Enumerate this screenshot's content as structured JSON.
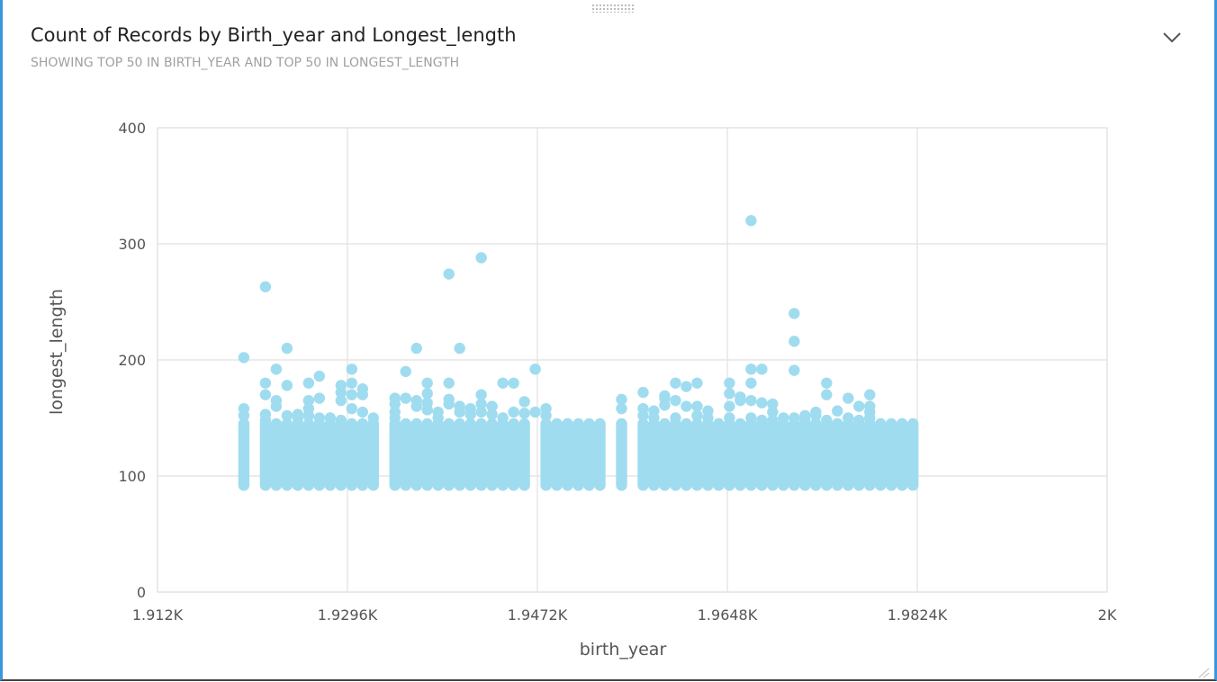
{
  "header": {
    "title": "Count of Records by Birth_year and Longest_length",
    "subtitle": "SHOWING TOP 50 IN BIRTH_YEAR AND TOP 50 IN LONGEST_LENGTH"
  },
  "icons": {
    "collapse": "chevron-down-icon",
    "resize": "resize-grip-icon",
    "drag": "drag-handle-icon"
  },
  "colors": {
    "point": "#a0dcef",
    "grid": "#e1e1e1",
    "accent": "#3a96dd"
  },
  "chart_data": {
    "type": "scatter",
    "xlabel": "birth_year",
    "ylabel": "longest_length",
    "xlim": [
      1912,
      2000
    ],
    "ylim": [
      0,
      400
    ],
    "grid": true,
    "x_ticks": [
      1912,
      1929.6,
      1947.2,
      1964.8,
      1982.4,
      2000
    ],
    "x_tick_labels": [
      "1.912K",
      "1.9296K",
      "1.9472K",
      "1.9648K",
      "1.9824K",
      "2K"
    ],
    "y_ticks": [
      0,
      100,
      200,
      300,
      400
    ],
    "y_tick_labels": [
      "0",
      "100",
      "200",
      "300",
      "400"
    ],
    "bands": {
      "note_min": 92,
      "note_max": 145,
      "years": [
        1920,
        1922,
        1923,
        1924,
        1925,
        1926,
        1927,
        1928,
        1929,
        1930,
        1931,
        1932,
        1934,
        1935,
        1936,
        1937,
        1938,
        1939,
        1940,
        1941,
        1942,
        1943,
        1944,
        1945,
        1946,
        1948,
        1949,
        1950,
        1951,
        1952,
        1953,
        1955,
        1957,
        1958,
        1959,
        1960,
        1961,
        1962,
        1963,
        1964,
        1965,
        1966,
        1967,
        1968,
        1969,
        1970,
        1971,
        1972,
        1973,
        1974,
        1975,
        1976,
        1977,
        1978,
        1979,
        1980,
        1981,
        1982
      ]
    },
    "points": [
      [
        1920,
        202
      ],
      [
        1920,
        158
      ],
      [
        1920,
        152
      ],
      [
        1922,
        263
      ],
      [
        1922,
        180
      ],
      [
        1922,
        170
      ],
      [
        1922,
        153
      ],
      [
        1922,
        148
      ],
      [
        1923,
        192
      ],
      [
        1923,
        165
      ],
      [
        1923,
        160
      ],
      [
        1924,
        210
      ],
      [
        1924,
        178
      ],
      [
        1924,
        152
      ],
      [
        1925,
        153
      ],
      [
        1925,
        150
      ],
      [
        1926,
        180
      ],
      [
        1926,
        165
      ],
      [
        1926,
        158
      ],
      [
        1926,
        152
      ],
      [
        1927,
        186
      ],
      [
        1927,
        167
      ],
      [
        1927,
        150
      ],
      [
        1928,
        150
      ],
      [
        1929,
        178
      ],
      [
        1929,
        172
      ],
      [
        1929,
        165
      ],
      [
        1929,
        148
      ],
      [
        1930,
        192
      ],
      [
        1930,
        180
      ],
      [
        1930,
        170
      ],
      [
        1930,
        158
      ],
      [
        1931,
        175
      ],
      [
        1931,
        170
      ],
      [
        1931,
        155
      ],
      [
        1932,
        150
      ],
      [
        1934,
        167
      ],
      [
        1934,
        162
      ],
      [
        1934,
        155
      ],
      [
        1934,
        150
      ],
      [
        1935,
        190
      ],
      [
        1935,
        167
      ],
      [
        1936,
        210
      ],
      [
        1936,
        165
      ],
      [
        1936,
        160
      ],
      [
        1937,
        180
      ],
      [
        1937,
        171
      ],
      [
        1937,
        163
      ],
      [
        1937,
        157
      ],
      [
        1938,
        155
      ],
      [
        1938,
        150
      ],
      [
        1939,
        274
      ],
      [
        1939,
        180
      ],
      [
        1939,
        166
      ],
      [
        1939,
        162
      ],
      [
        1940,
        210
      ],
      [
        1940,
        160
      ],
      [
        1940,
        155
      ],
      [
        1941,
        158
      ],
      [
        1941,
        153
      ],
      [
        1942,
        288
      ],
      [
        1942,
        170
      ],
      [
        1942,
        162
      ],
      [
        1942,
        155
      ],
      [
        1943,
        160
      ],
      [
        1943,
        153
      ],
      [
        1944,
        180
      ],
      [
        1944,
        150
      ],
      [
        1945,
        180
      ],
      [
        1945,
        155
      ],
      [
        1946,
        164
      ],
      [
        1946,
        154
      ],
      [
        1947,
        192
      ],
      [
        1947,
        155
      ],
      [
        1948,
        158
      ],
      [
        1948,
        152
      ],
      [
        1950,
        140
      ],
      [
        1951,
        140
      ],
      [
        1951,
        140
      ],
      [
        1953,
        140
      ],
      [
        1955,
        166
      ],
      [
        1955,
        158
      ],
      [
        1957,
        172
      ],
      [
        1957,
        158
      ],
      [
        1957,
        152
      ],
      [
        1958,
        156
      ],
      [
        1958,
        150
      ],
      [
        1959,
        169
      ],
      [
        1959,
        167
      ],
      [
        1959,
        161
      ],
      [
        1960,
        180
      ],
      [
        1960,
        165
      ],
      [
        1960,
        150
      ],
      [
        1961,
        177
      ],
      [
        1961,
        160
      ],
      [
        1962,
        180
      ],
      [
        1962,
        160
      ],
      [
        1962,
        152
      ],
      [
        1963,
        156
      ],
      [
        1963,
        150
      ],
      [
        1964,
        145
      ],
      [
        1965,
        180
      ],
      [
        1965,
        171
      ],
      [
        1965,
        160
      ],
      [
        1965,
        150
      ],
      [
        1966,
        168
      ],
      [
        1966,
        165
      ],
      [
        1967,
        320
      ],
      [
        1967,
        192
      ],
      [
        1967,
        180
      ],
      [
        1967,
        165
      ],
      [
        1967,
        150
      ],
      [
        1968,
        192
      ],
      [
        1968,
        163
      ],
      [
        1968,
        148
      ],
      [
        1969,
        162
      ],
      [
        1969,
        155
      ],
      [
        1969,
        148
      ],
      [
        1970,
        150
      ],
      [
        1971,
        240
      ],
      [
        1971,
        216
      ],
      [
        1971,
        191
      ],
      [
        1971,
        150
      ],
      [
        1972,
        152
      ],
      [
        1972,
        148
      ],
      [
        1973,
        155
      ],
      [
        1973,
        152
      ],
      [
        1974,
        180
      ],
      [
        1974,
        170
      ],
      [
        1974,
        148
      ],
      [
        1975,
        156
      ],
      [
        1975,
        145
      ],
      [
        1976,
        167
      ],
      [
        1976,
        150
      ],
      [
        1977,
        160
      ],
      [
        1977,
        148
      ],
      [
        1978,
        170
      ],
      [
        1978,
        160
      ],
      [
        1978,
        155
      ],
      [
        1978,
        150
      ]
    ]
  }
}
